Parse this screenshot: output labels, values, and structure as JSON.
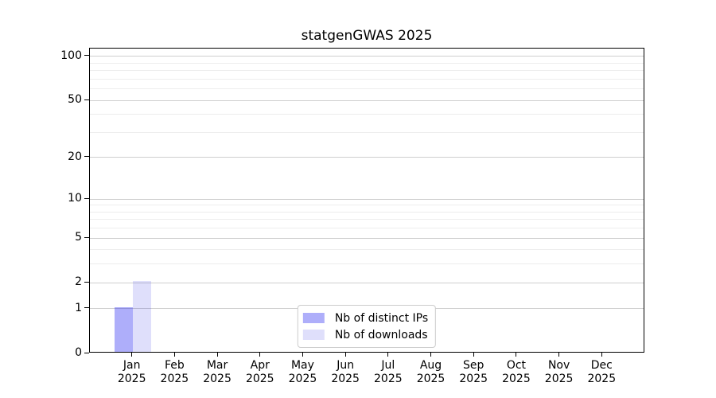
{
  "title": "statgenGWAS 2025",
  "colors": {
    "bar_distinct_ips": "rgba(10,10,240,0.33)",
    "bar_downloads": "rgba(30,30,230,0.14)",
    "grid_major": "#cfcfcf",
    "grid_minor": "#ededed",
    "axis": "#000000",
    "legend_border": "#cccccc",
    "background": "#ffffff"
  },
  "chart_data": {
    "type": "bar",
    "title": "statgenGWAS 2025",
    "categories": [
      "Jan",
      "Feb",
      "Mar",
      "Apr",
      "May",
      "Jun",
      "Jul",
      "Aug",
      "Sep",
      "Oct",
      "Nov",
      "Dec"
    ],
    "year": "2025",
    "xtick_labels": [
      "Jan 2025",
      "Feb 2025",
      "Mar 2025",
      "Apr 2025",
      "May 2025",
      "Jun 2025",
      "Jul 2025",
      "Aug 2025",
      "Sep 2025",
      "Oct 2025",
      "Nov 2025",
      "Dec 2025"
    ],
    "series": [
      {
        "name": "Nb of distinct IPs",
        "color": "rgba(10,10,240,0.33)",
        "values": [
          1,
          0,
          0,
          0,
          0,
          0,
          0,
          0,
          0,
          0,
          0,
          0
        ]
      },
      {
        "name": "Nb of downloads",
        "color": "rgba(30,30,230,0.14)",
        "values": [
          2,
          0,
          0,
          0,
          0,
          0,
          0,
          0,
          0,
          0,
          0,
          0
        ]
      }
    ],
    "yscale": "log1p",
    "ylim": [
      0,
      113
    ],
    "yticks_major": [
      0,
      1,
      2,
      5,
      10,
      20,
      50,
      100
    ],
    "ytick_labels": [
      "0",
      "1",
      "2",
      "5",
      "10",
      "20",
      "50",
      "100"
    ],
    "yticks_minor": [
      3,
      4,
      6,
      7,
      8,
      9,
      30,
      40,
      60,
      70,
      80,
      90
    ],
    "grid": "horizontal",
    "legend_position": "lower center",
    "xlabel": "",
    "ylabel": ""
  }
}
